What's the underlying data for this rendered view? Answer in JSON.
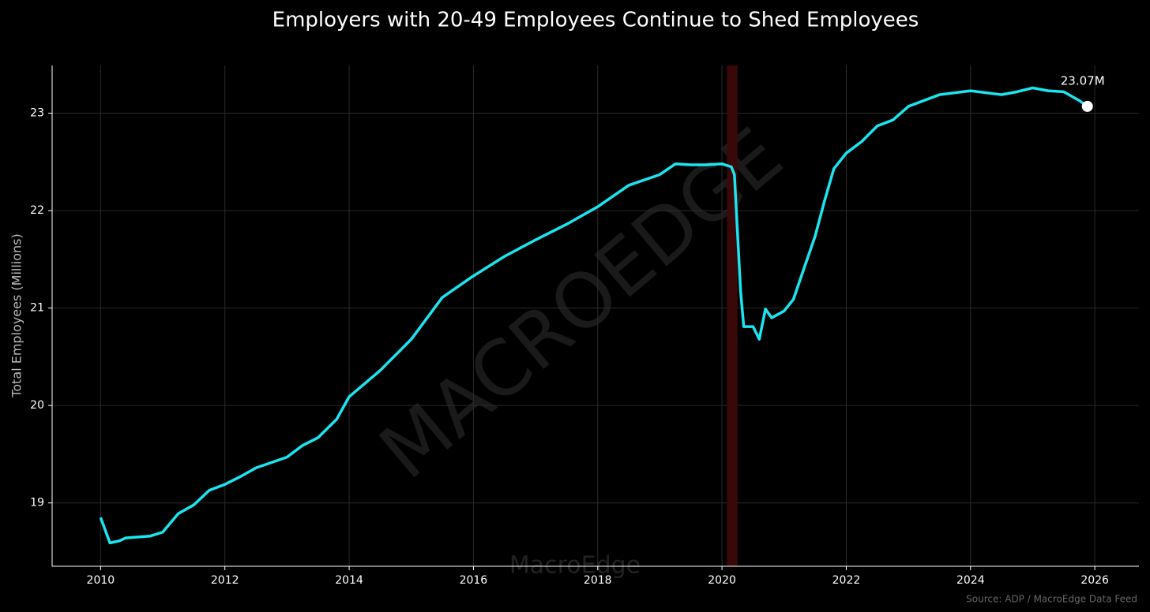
{
  "chart_data": {
    "type": "line",
    "title": "Employers with 20-49 Employees Continue to Shed Employees",
    "y_label": "Total Employees (Millions)",
    "source": "Source: ADP / MacroEdge Data Feed",
    "watermark": "MACROEDGE",
    "watermark_small": "MacroEdge",
    "annotation": "23.07M",
    "series": [
      {
        "name": "Total Employees",
        "color": "#19e6f0",
        "x": [
          2010.0,
          2010.15,
          2010.3,
          2010.4,
          2010.8,
          2011.0,
          2011.25,
          2011.5,
          2011.75,
          2012.0,
          2012.25,
          2012.5,
          2013.0,
          2013.25,
          2013.5,
          2013.8,
          2014.0,
          2014.5,
          2015.0,
          2015.5,
          2016.0,
          2016.5,
          2017.0,
          2017.5,
          2018.0,
          2018.5,
          2019.0,
          2019.25,
          2019.5,
          2019.75,
          2020.0,
          2020.15,
          2020.2,
          2020.3,
          2020.35,
          2020.5,
          2020.6,
          2020.7,
          2020.8,
          2021.0,
          2021.15,
          2021.3,
          2021.5,
          2021.65,
          2021.8,
          2022.0,
          2022.25,
          2022.5,
          2022.75,
          2023.0,
          2023.25,
          2023.5,
          2024.0,
          2024.5,
          2024.75,
          2025.0,
          2025.25,
          2025.5,
          2025.75,
          2025.88
        ],
        "values": [
          18.85,
          18.59,
          18.61,
          18.64,
          18.66,
          18.7,
          18.89,
          18.98,
          19.13,
          19.19,
          19.27,
          19.36,
          19.47,
          19.59,
          19.67,
          19.86,
          20.09,
          20.36,
          20.68,
          21.11,
          21.33,
          21.53,
          21.7,
          21.86,
          22.04,
          22.26,
          22.37,
          22.48,
          22.47,
          22.47,
          22.48,
          22.45,
          22.37,
          21.17,
          20.81,
          20.81,
          20.68,
          20.99,
          20.9,
          20.97,
          21.09,
          21.37,
          21.74,
          22.1,
          22.43,
          22.59,
          22.71,
          22.87,
          22.93,
          23.07,
          23.13,
          23.19,
          23.23,
          23.19,
          23.22,
          23.26,
          23.23,
          23.22,
          23.13,
          23.07
        ]
      }
    ],
    "shaded_span": [
      2020.08,
      2020.25
    ],
    "xlim": [
      2009.22,
      2026.71
    ],
    "xticks": [
      2010,
      2012,
      2014,
      2016,
      2018,
      2020,
      2022,
      2024,
      2026
    ],
    "ylim": [
      18.35,
      23.49
    ],
    "yticks": [
      19,
      20,
      21,
      22,
      23
    ],
    "grid": true
  }
}
